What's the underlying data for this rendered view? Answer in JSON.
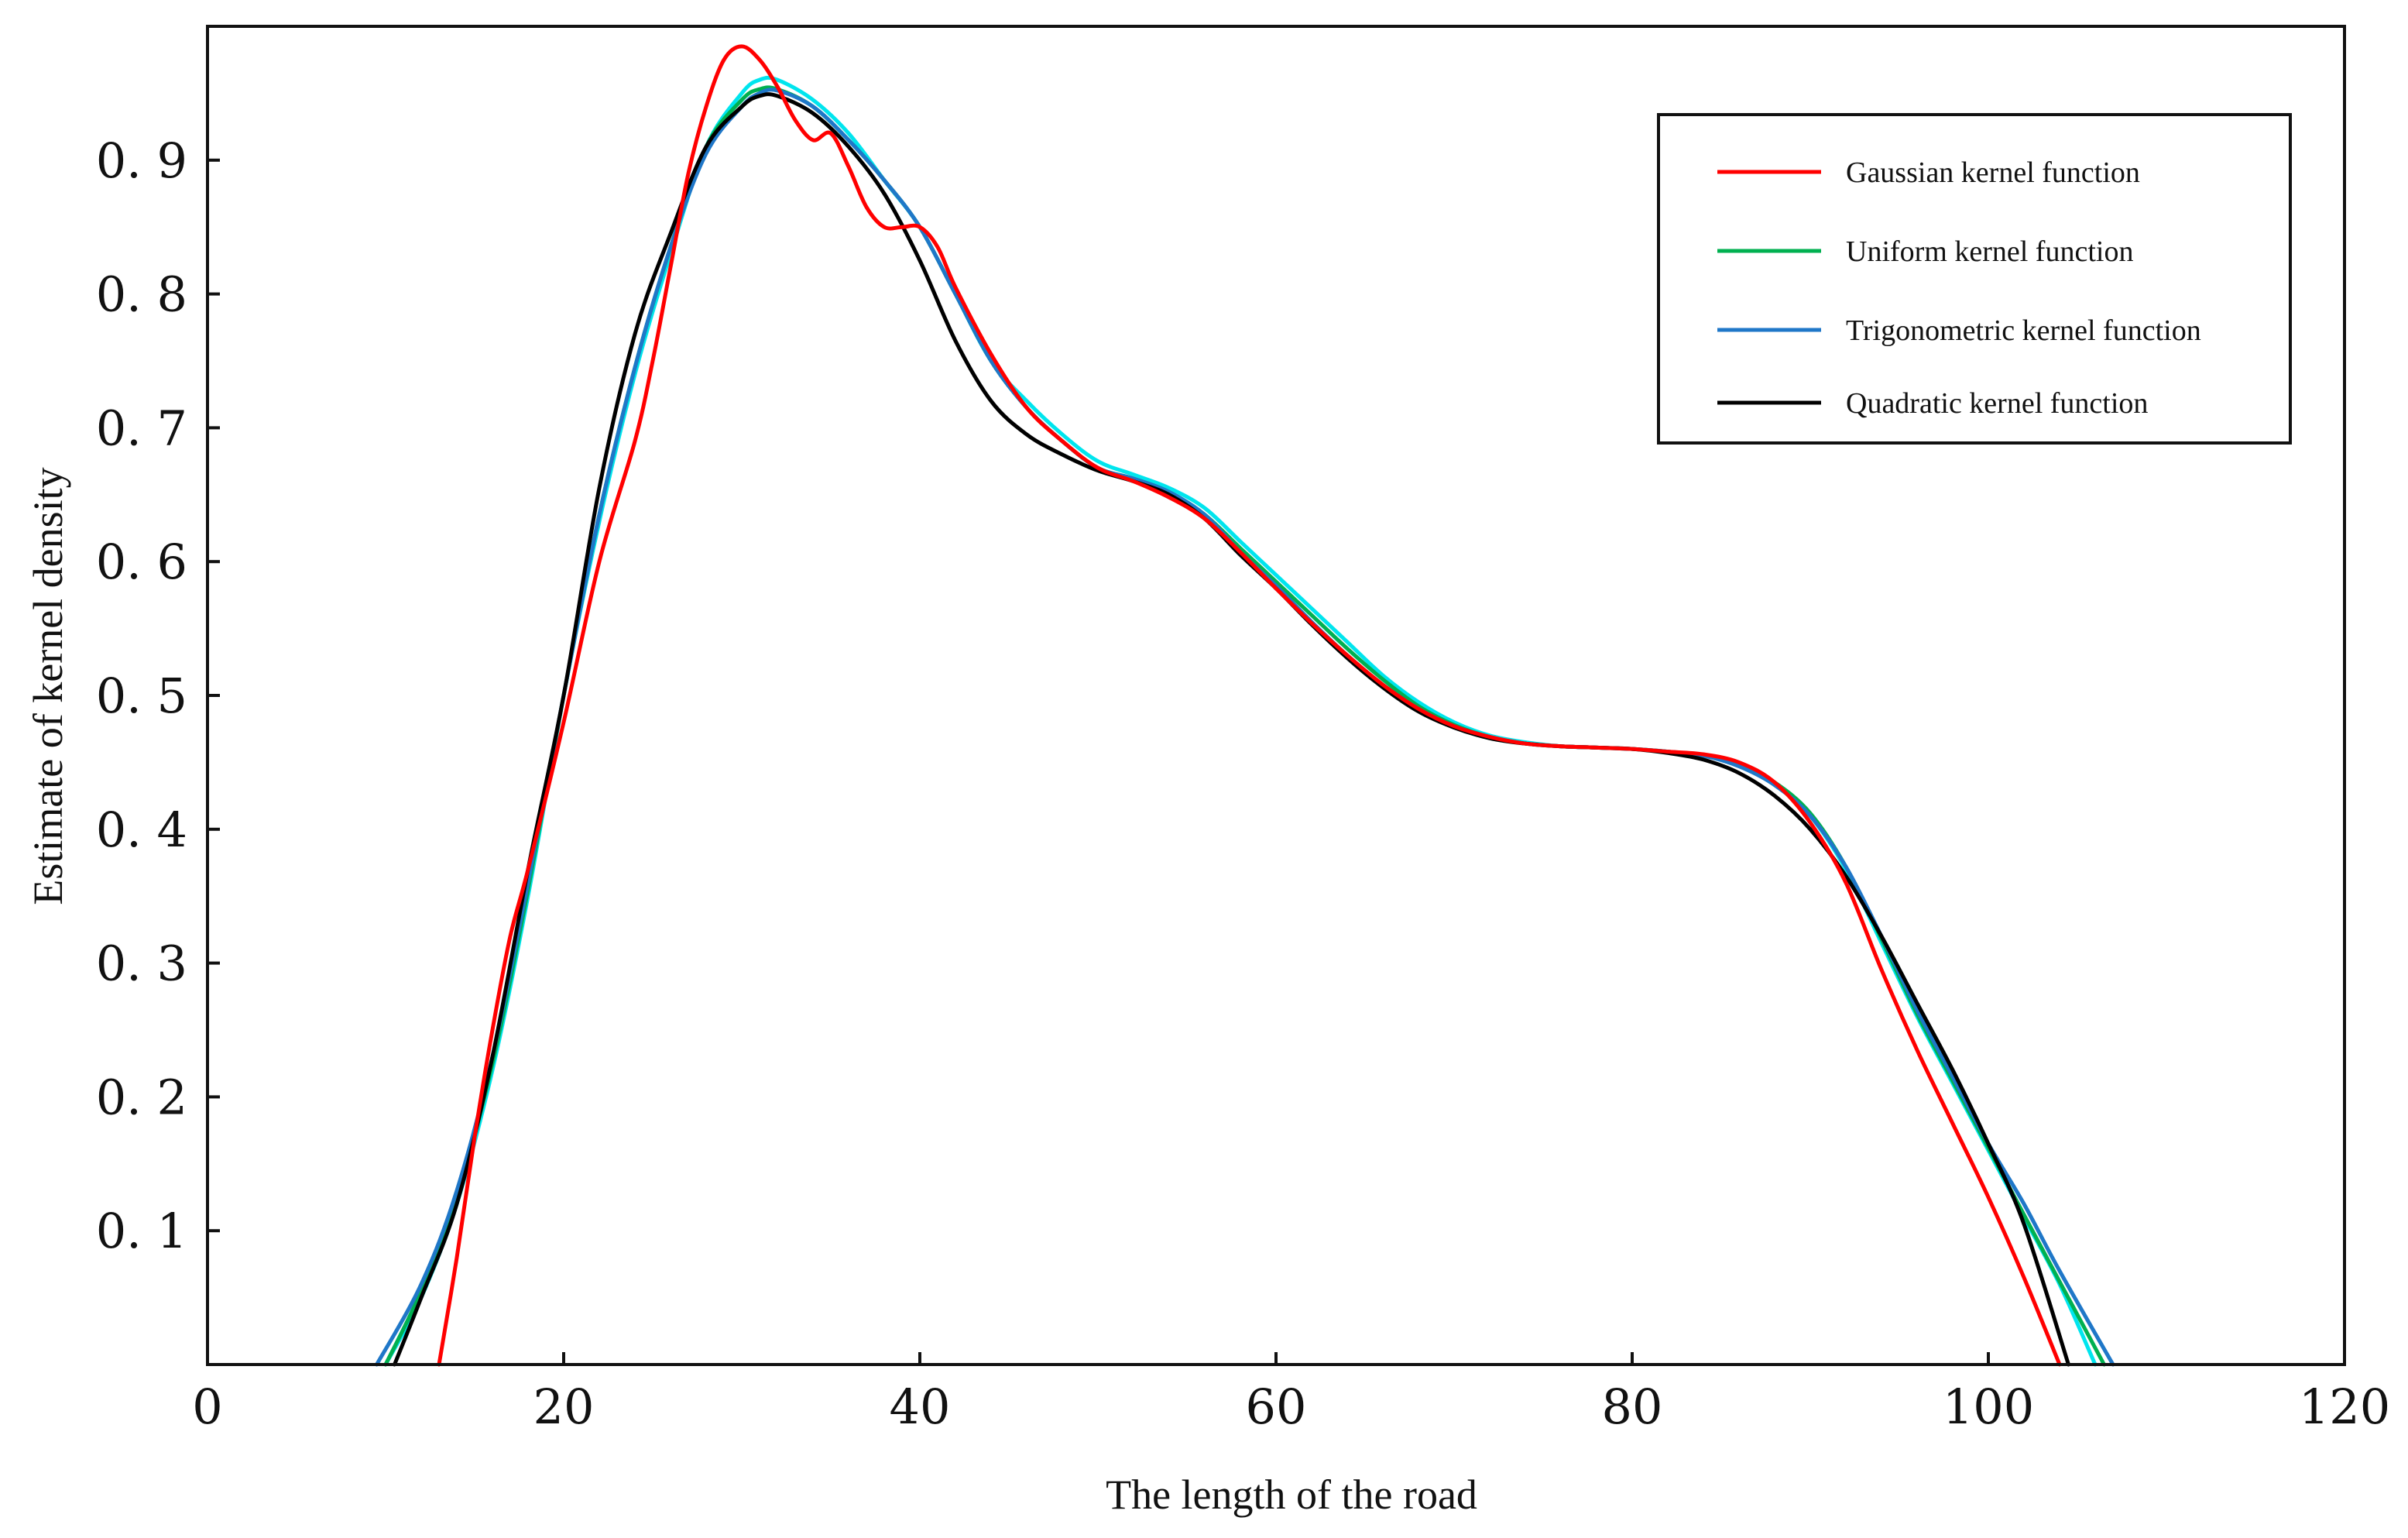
{
  "chart_data": {
    "type": "line",
    "title": "",
    "xlabel": "The length of the road",
    "ylabel": "Estimate of kernel density",
    "xlim": [
      0,
      120
    ],
    "ylim": [
      0,
      1.0
    ],
    "xticks": [
      0,
      20,
      40,
      60,
      80,
      100,
      120
    ],
    "xtick_labels": [
      "0",
      "20",
      "40",
      "60",
      "80",
      "100",
      "120"
    ],
    "yticks": [
      0.1,
      0.2,
      0.3,
      0.4,
      0.5,
      0.6,
      0.7,
      0.8,
      0.9
    ],
    "ytick_labels": [
      "0. 1",
      "0. 2",
      "0. 3",
      "0. 4",
      "0. 5",
      "0. 6",
      "0. 7",
      "0. 8",
      "0. 9"
    ],
    "grid": false,
    "legend_position": "top-right",
    "legend": [
      {
        "label": "Gaussian kernel function",
        "color": "#ff0000"
      },
      {
        "label": "Uniform kernel function",
        "color": "#00b050"
      },
      {
        "label": "Trigonometric kernel function",
        "color": "#1f77c8"
      },
      {
        "label": "Quadratic kernel function",
        "color": "#000000"
      }
    ],
    "series": [
      {
        "name": "Cyan curve",
        "color": "#00e5ee",
        "in_legend": false,
        "x": [
          10,
          12,
          14,
          16,
          18,
          20,
          22,
          24,
          26,
          28,
          30,
          31,
          32,
          34,
          36,
          38,
          40,
          42,
          44,
          46,
          48,
          50,
          52,
          54,
          56,
          58,
          60,
          62,
          64,
          66,
          68,
          70,
          72,
          74,
          76,
          78,
          80,
          82,
          84,
          86,
          88,
          90,
          92,
          94,
          96,
          98,
          100,
          102,
          104,
          106
        ],
        "y": [
          0.0,
          0.05,
          0.12,
          0.22,
          0.35,
          0.5,
          0.63,
          0.74,
          0.83,
          0.91,
          0.95,
          0.96,
          0.96,
          0.945,
          0.92,
          0.885,
          0.85,
          0.8,
          0.75,
          0.72,
          0.695,
          0.675,
          0.665,
          0.655,
          0.64,
          0.615,
          0.59,
          0.565,
          0.54,
          0.515,
          0.495,
          0.48,
          0.47,
          0.465,
          0.462,
          0.461,
          0.46,
          0.458,
          0.455,
          0.448,
          0.435,
          0.41,
          0.37,
          0.315,
          0.26,
          0.21,
          0.16,
          0.11,
          0.06,
          0.0
        ]
      },
      {
        "name": "Uniform kernel function",
        "color": "#00b050",
        "in_legend": true,
        "x": [
          10,
          12,
          14,
          16,
          18,
          20,
          22,
          24,
          26,
          28,
          30,
          31,
          32,
          34,
          36,
          38,
          40,
          42,
          44,
          46,
          48,
          50,
          52,
          54,
          56,
          58,
          60,
          62,
          64,
          66,
          68,
          70,
          72,
          74,
          76,
          78,
          80,
          82,
          84,
          86,
          88,
          90,
          92,
          94,
          96,
          98,
          100,
          102,
          104,
          106.5
        ],
        "y": [
          0.0,
          0.055,
          0.125,
          0.225,
          0.355,
          0.5,
          0.635,
          0.745,
          0.835,
          0.91,
          0.945,
          0.953,
          0.953,
          0.94,
          0.915,
          0.885,
          0.85,
          0.8,
          0.75,
          0.715,
          0.69,
          0.67,
          0.662,
          0.652,
          0.635,
          0.61,
          0.585,
          0.56,
          0.535,
          0.512,
          0.492,
          0.478,
          0.469,
          0.464,
          0.462,
          0.461,
          0.46,
          0.458,
          0.455,
          0.448,
          0.435,
          0.412,
          0.372,
          0.318,
          0.262,
          0.212,
          0.162,
          0.112,
          0.062,
          0.0
        ]
      },
      {
        "name": "Trigonometric kernel function",
        "color": "#1f77c8",
        "in_legend": true,
        "x": [
          9.5,
          12,
          14,
          16,
          18,
          20,
          22,
          24,
          26,
          28,
          30,
          31,
          32,
          34,
          36,
          38,
          40,
          42,
          44,
          46,
          48,
          50,
          52,
          54,
          56,
          58,
          60,
          62,
          64,
          66,
          68,
          70,
          72,
          74,
          76,
          78,
          80,
          82,
          84,
          86,
          88,
          90,
          92,
          94,
          96,
          98,
          100,
          102,
          104,
          107
        ],
        "y": [
          0.0,
          0.06,
          0.13,
          0.23,
          0.36,
          0.5,
          0.635,
          0.745,
          0.835,
          0.905,
          0.94,
          0.95,
          0.952,
          0.94,
          0.915,
          0.885,
          0.85,
          0.8,
          0.75,
          0.715,
          0.69,
          0.67,
          0.662,
          0.652,
          0.635,
          0.607,
          0.582,
          0.555,
          0.53,
          0.508,
          0.49,
          0.477,
          0.469,
          0.464,
          0.462,
          0.461,
          0.46,
          0.458,
          0.455,
          0.447,
          0.433,
          0.41,
          0.372,
          0.32,
          0.265,
          0.215,
          0.165,
          0.12,
          0.07,
          0.0
        ]
      },
      {
        "name": "Quadratic kernel function",
        "color": "#000000",
        "in_legend": true,
        "x": [
          10.5,
          12,
          14,
          16,
          18,
          20,
          22,
          24,
          26,
          28,
          30,
          31,
          32,
          34,
          36,
          38,
          40,
          42,
          44,
          46,
          48,
          50,
          52,
          54,
          56,
          58,
          60,
          62,
          64,
          66,
          68,
          70,
          72,
          74,
          76,
          78,
          80,
          82,
          84,
          86,
          88,
          90,
          92,
          94,
          96,
          98,
          100,
          102,
          104.5
        ],
        "y": [
          0.0,
          0.05,
          0.12,
          0.23,
          0.37,
          0.5,
          0.655,
          0.77,
          0.845,
          0.91,
          0.94,
          0.948,
          0.948,
          0.935,
          0.91,
          0.875,
          0.825,
          0.765,
          0.72,
          0.695,
          0.68,
          0.668,
          0.66,
          0.65,
          0.632,
          0.605,
          0.58,
          0.553,
          0.528,
          0.506,
          0.488,
          0.476,
          0.468,
          0.464,
          0.462,
          0.461,
          0.46,
          0.457,
          0.452,
          0.442,
          0.425,
          0.4,
          0.365,
          0.32,
          0.27,
          0.22,
          0.165,
          0.105,
          0.0
        ]
      },
      {
        "name": "Gaussian kernel function",
        "color": "#ff0000",
        "in_legend": true,
        "x": [
          13,
          14,
          15,
          16,
          17,
          18,
          20,
          22,
          24,
          25,
          26,
          27,
          28,
          29,
          30,
          31,
          32,
          33,
          34,
          35,
          36,
          37,
          38,
          39,
          40,
          41,
          42,
          44,
          46,
          48,
          50,
          52,
          54,
          56,
          58,
          60,
          62,
          64,
          66,
          68,
          70,
          72,
          74,
          76,
          78,
          80,
          82,
          84,
          86,
          88,
          90,
          92,
          94,
          96,
          98,
          100,
          102,
          104
        ],
        "y": [
          0.0,
          0.08,
          0.17,
          0.25,
          0.32,
          0.37,
          0.48,
          0.6,
          0.69,
          0.75,
          0.82,
          0.89,
          0.94,
          0.975,
          0.985,
          0.975,
          0.955,
          0.93,
          0.915,
          0.92,
          0.895,
          0.865,
          0.85,
          0.85,
          0.85,
          0.835,
          0.805,
          0.755,
          0.715,
          0.69,
          0.67,
          0.66,
          0.648,
          0.632,
          0.607,
          0.58,
          0.554,
          0.53,
          0.508,
          0.49,
          0.477,
          0.469,
          0.464,
          0.462,
          0.461,
          0.46,
          0.458,
          0.456,
          0.45,
          0.435,
          0.405,
          0.36,
          0.295,
          0.235,
          0.18,
          0.125,
          0.065,
          0.0
        ]
      }
    ]
  }
}
